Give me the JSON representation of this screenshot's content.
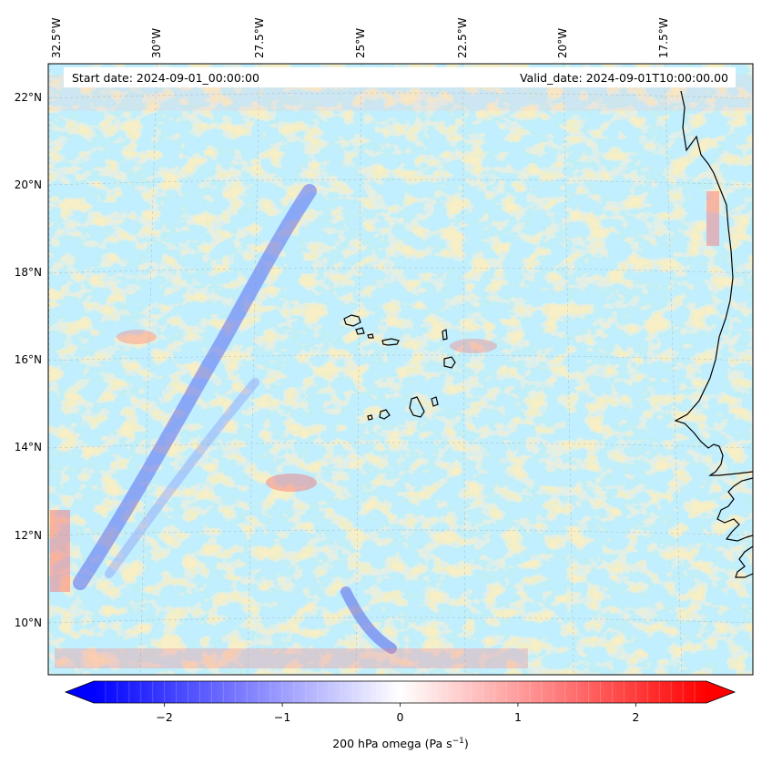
{
  "map": {
    "start_date_text": "Start date: 2024-09-01_00:00:00",
    "valid_date_text": "Valid_date: 2024-09-01T10:00:00.00",
    "lon_labels": [
      "32.5°W",
      "30°W",
      "27.5°W",
      "25°W",
      "22.5°W",
      "20°W",
      "17.5°W"
    ],
    "lat_labels": [
      "22°N",
      "20°N",
      "18°N",
      "16°N",
      "14°N",
      "12°N",
      "10°N"
    ],
    "field": "200 hPa omega",
    "extent": {
      "lon_min": -32.6,
      "lon_max": -15.2,
      "lat_min": 8.9,
      "lat_max": 22.8
    },
    "gridlines": true
  },
  "colorbar": {
    "ticks": [
      "−2",
      "−1",
      "0",
      "1",
      "2"
    ],
    "tick_values": [
      -2,
      -1,
      0,
      1,
      2
    ],
    "range": [
      -2.6,
      2.6
    ],
    "extend": "both",
    "label_main": "200 hPa omega (Pa s",
    "label_sup": "−1",
    "label_end": ")",
    "colors": {
      "negative": "#0000ff",
      "zero": "#ffffff",
      "positive": "#ff0000"
    }
  }
}
